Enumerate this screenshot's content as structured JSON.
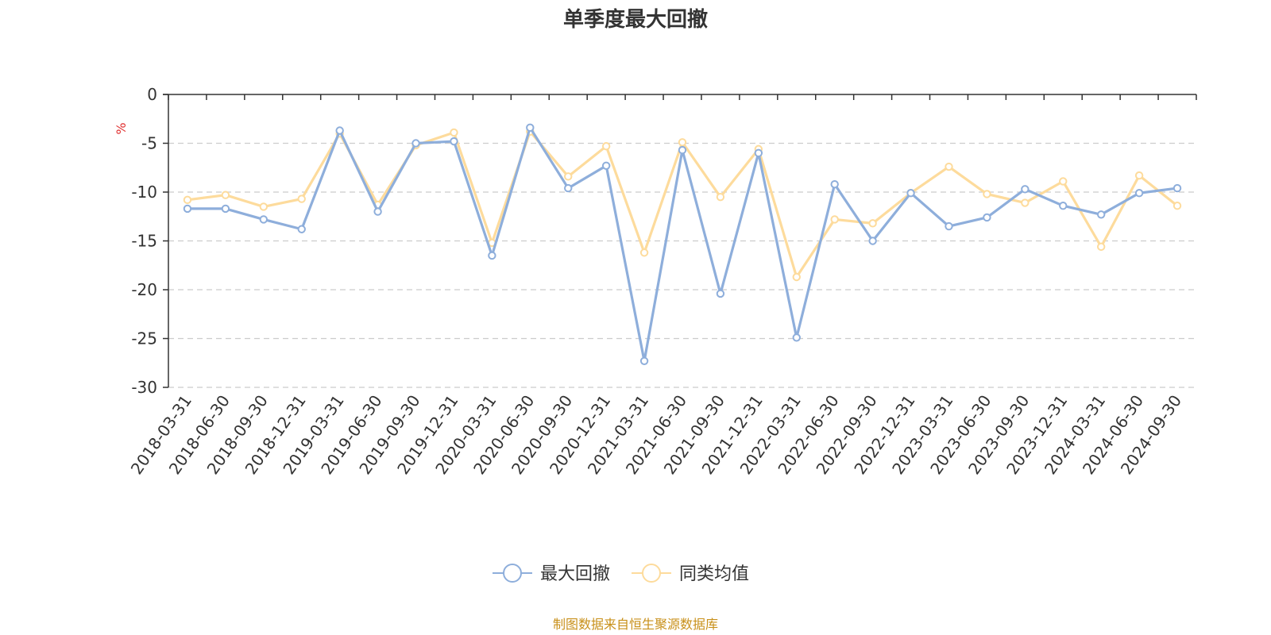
{
  "chart_data": {
    "type": "line",
    "title": "单季度最大回撤",
    "ylabel": "%",
    "ylim": [
      -30,
      0
    ],
    "yticks": [
      0,
      -5,
      -10,
      -15,
      -20,
      -25,
      -30
    ],
    "grid": true,
    "legend_position": "bottom",
    "categories": [
      "2018-03-31",
      "2018-06-30",
      "2018-09-30",
      "2018-12-31",
      "2019-03-31",
      "2019-06-30",
      "2019-09-30",
      "2019-12-31",
      "2020-03-31",
      "2020-06-30",
      "2020-09-30",
      "2020-12-31",
      "2021-03-31",
      "2021-06-30",
      "2021-09-30",
      "2021-12-31",
      "2022-03-31",
      "2022-06-30",
      "2022-09-30",
      "2022-12-31",
      "2023-03-31",
      "2023-06-30",
      "2023-09-30",
      "2023-12-31",
      "2024-03-31",
      "2024-06-30",
      "2024-09-30"
    ],
    "series": [
      {
        "name": "最大回撤",
        "color": "#8eaedb",
        "values": [
          -11.7,
          -11.7,
          -12.8,
          -13.8,
          -3.7,
          -12.0,
          -5.0,
          -4.8,
          -16.5,
          -3.4,
          -9.6,
          -7.3,
          -27.3,
          -5.7,
          -20.4,
          -6.0,
          -24.9,
          -9.2,
          -15.0,
          -10.1,
          -13.5,
          -12.6,
          -9.7,
          -11.4,
          -12.3,
          -10.1,
          -9.6
        ]
      },
      {
        "name": "同类均值",
        "color": "#fddb9c",
        "values": [
          -10.8,
          -10.3,
          -11.5,
          -10.7,
          -4.0,
          -11.3,
          -5.2,
          -3.9,
          -15.2,
          -3.8,
          -8.4,
          -5.3,
          -16.2,
          -4.9,
          -10.5,
          -5.6,
          -18.7,
          -12.8,
          -13.2,
          -10.1,
          -7.4,
          -10.2,
          -11.1,
          -8.9,
          -15.6,
          -8.3,
          -11.4
        ]
      }
    ]
  },
  "source_text": "制图数据来自恒生聚源数据库",
  "colors": {
    "axis": "#333333",
    "grid": "#cccccc",
    "unit": "#e03030",
    "source": "#c8901a"
  }
}
